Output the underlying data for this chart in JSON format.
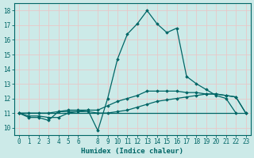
{
  "xlabel": "Humidex (Indice chaleur)",
  "background_color": "#cceae8",
  "grid_color": "#e8c8c8",
  "line_color": "#006666",
  "x_values": [
    0,
    1,
    2,
    3,
    4,
    5,
    6,
    7,
    8,
    9,
    10,
    11,
    12,
    13,
    14,
    15,
    16,
    17,
    18,
    19,
    20,
    21,
    22,
    23
  ],
  "series1": [
    11.0,
    10.7,
    10.7,
    10.5,
    11.1,
    11.2,
    11.2,
    11.2,
    9.8,
    12.0,
    14.7,
    16.4,
    17.1,
    18.0,
    17.1,
    16.5,
    16.8,
    13.5,
    13.0,
    12.6,
    12.2,
    12.0,
    11.0,
    null
  ],
  "series2": [
    11.0,
    10.8,
    10.8,
    10.7,
    10.7,
    11.0,
    11.1,
    11.1,
    11.0,
    11.0,
    11.1,
    11.2,
    11.4,
    11.6,
    11.8,
    11.9,
    12.0,
    12.1,
    12.2,
    12.3,
    12.3,
    12.2,
    12.1,
    11.0
  ],
  "series3": [
    11.0,
    11.0,
    11.0,
    11.0,
    11.0,
    11.0,
    11.0,
    11.0,
    11.0,
    11.0,
    11.0,
    11.0,
    11.0,
    11.0,
    11.0,
    11.0,
    11.0,
    11.0,
    11.0,
    11.0,
    11.0,
    11.0,
    11.0,
    11.0
  ],
  "series4": [
    11.0,
    11.0,
    11.0,
    11.0,
    11.1,
    11.1,
    11.1,
    11.2,
    11.2,
    11.5,
    11.8,
    12.0,
    12.2,
    12.5,
    12.5,
    12.5,
    12.5,
    12.4,
    12.4,
    12.3,
    12.3,
    12.2,
    12.1,
    11.0
  ],
  "ylim": [
    9.5,
    18.5
  ],
  "xlim": [
    -0.5,
    23.5
  ],
  "yticks": [
    10,
    11,
    12,
    13,
    14,
    15,
    16,
    17,
    18
  ],
  "xticks": [
    0,
    1,
    2,
    3,
    4,
    5,
    6,
    8,
    9,
    10,
    11,
    12,
    13,
    14,
    15,
    16,
    17,
    18,
    19,
    20,
    21,
    22,
    23
  ],
  "xlabel_fontsize": 6.5,
  "tick_fontsize": 5.5
}
